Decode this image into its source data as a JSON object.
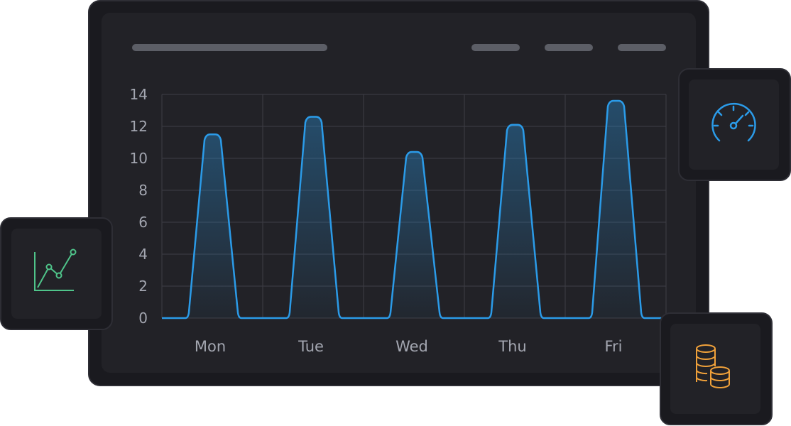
{
  "chart_data": {
    "type": "peaks",
    "categories": [
      "Mon",
      "Tue",
      "Wed",
      "Thu",
      "Fri"
    ],
    "values": [
      11.5,
      12.6,
      10.4,
      12.1,
      13.6
    ],
    "color": "#2b9be8",
    "ylim": [
      0,
      14
    ],
    "yticks": [
      0,
      2,
      4,
      6,
      8,
      10,
      12,
      14
    ],
    "grid": true
  }
}
